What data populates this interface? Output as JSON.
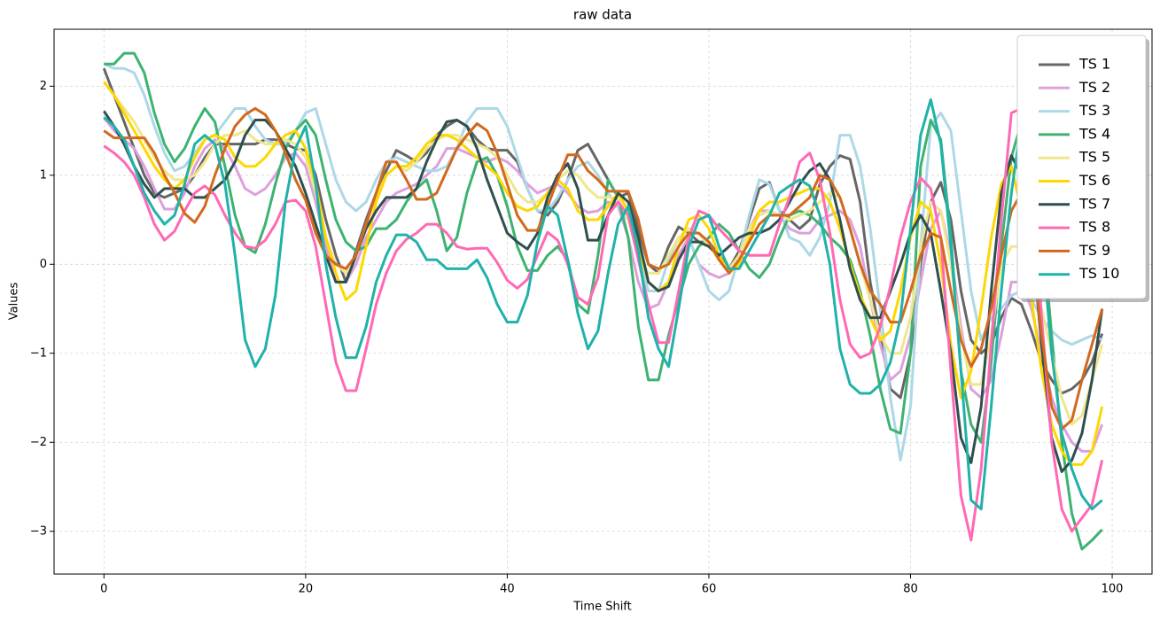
{
  "chart_data": {
    "type": "line",
    "title": "raw data",
    "xlabel": "Time Shift",
    "ylabel": "Values",
    "x": [
      0,
      1,
      2,
      3,
      4,
      5,
      6,
      7,
      8,
      9,
      10,
      11,
      12,
      13,
      14,
      15,
      16,
      17,
      18,
      19,
      20,
      21,
      22,
      23,
      24,
      25,
      26,
      27,
      28,
      29,
      30,
      31,
      32,
      33,
      34,
      35,
      36,
      37,
      38,
      39,
      40,
      41,
      42,
      43,
      44,
      45,
      46,
      47,
      48,
      49,
      50,
      51,
      52,
      53,
      54,
      55,
      56,
      57,
      58,
      59,
      60,
      61,
      62,
      63,
      64,
      65,
      66,
      67,
      68,
      69,
      70,
      71,
      72,
      73,
      74,
      75,
      76,
      77,
      78,
      79,
      80,
      81,
      82,
      83,
      84,
      85,
      86,
      87,
      88,
      89,
      90,
      91,
      92,
      93,
      94,
      95,
      96,
      97,
      98,
      99
    ],
    "series": [
      {
        "name": "TS 1",
        "color": "#666666",
        "values": [
          2.2,
          1.9,
          1.6,
          1.3,
          1.0,
          0.8,
          0.75,
          0.8,
          0.85,
          1.0,
          1.2,
          1.35,
          1.35,
          1.35,
          1.35,
          1.35,
          1.4,
          1.4,
          1.35,
          1.3,
          1.28,
          1.0,
          0.5,
          0.1,
          -0.2,
          0.15,
          0.5,
          0.8,
          1.05,
          1.28,
          1.22,
          1.15,
          1.25,
          1.45,
          1.55,
          1.62,
          1.55,
          1.4,
          1.3,
          1.28,
          1.28,
          1.15,
          0.85,
          0.6,
          0.55,
          0.7,
          0.95,
          1.28,
          1.35,
          1.15,
          0.95,
          0.75,
          0.8,
          0.4,
          0.0,
          -0.1,
          0.2,
          0.42,
          0.35,
          0.25,
          0.25,
          0.1,
          -0.05,
          0.15,
          0.5,
          0.85,
          0.92,
          0.6,
          0.5,
          0.4,
          0.5,
          0.9,
          1.1,
          1.22,
          1.18,
          0.7,
          -0.2,
          -0.8,
          -1.4,
          -1.5,
          -1.0,
          0.0,
          0.7,
          0.92,
          0.5,
          -0.3,
          -0.85,
          -1.0,
          -0.9,
          -0.6,
          -0.38,
          -0.45,
          -0.75,
          -1.1,
          -1.3,
          -1.45,
          -1.4,
          -1.3,
          -1.1,
          -0.78
        ]
      },
      {
        "name": "TS 2",
        "color": "#dda0dd",
        "values": [
          1.65,
          1.5,
          1.4,
          1.3,
          1.1,
          0.85,
          0.62,
          0.62,
          0.8,
          1.1,
          1.3,
          1.4,
          1.3,
          1.1,
          0.85,
          0.78,
          0.85,
          1.0,
          1.2,
          1.25,
          1.1,
          0.7,
          0.2,
          -0.2,
          -0.2,
          0.0,
          0.3,
          0.5,
          0.7,
          0.8,
          0.85,
          0.9,
          1.0,
          1.1,
          1.3,
          1.3,
          1.25,
          1.2,
          1.15,
          1.2,
          1.15,
          1.05,
          0.9,
          0.8,
          0.85,
          0.9,
          0.8,
          0.65,
          0.58,
          0.6,
          0.7,
          0.65,
          0.3,
          -0.2,
          -0.5,
          -0.45,
          -0.2,
          0.1,
          0.3,
          0.0,
          -0.1,
          -0.15,
          -0.1,
          0.1,
          0.4,
          0.6,
          0.6,
          0.55,
          0.4,
          0.35,
          0.35,
          0.5,
          0.55,
          0.6,
          0.5,
          0.2,
          -0.4,
          -0.9,
          -1.3,
          -1.2,
          -0.8,
          -0.2,
          0.4,
          0.6,
          0.1,
          -0.7,
          -1.4,
          -1.5,
          -1.3,
          -0.8,
          -0.2,
          -0.2,
          -0.5,
          -1.0,
          -1.5,
          -1.8,
          -2.0,
          -2.1,
          -2.1,
          -1.8
        ]
      },
      {
        "name": "TS 3",
        "color": "#add8e6",
        "values": [
          2.25,
          2.2,
          2.2,
          2.15,
          1.9,
          1.55,
          1.25,
          1.05,
          1.1,
          1.25,
          1.4,
          1.45,
          1.6,
          1.75,
          1.75,
          1.55,
          1.4,
          1.35,
          1.35,
          1.5,
          1.7,
          1.75,
          1.35,
          0.95,
          0.7,
          0.6,
          0.7,
          0.95,
          1.15,
          1.2,
          1.15,
          1.1,
          1.05,
          1.05,
          1.1,
          1.3,
          1.6,
          1.75,
          1.75,
          1.75,
          1.55,
          1.2,
          0.85,
          0.6,
          0.6,
          0.75,
          0.95,
          1.1,
          1.15,
          1.0,
          0.8,
          0.65,
          0.5,
          0.1,
          -0.3,
          -0.3,
          0.05,
          0.3,
          0.3,
          0.0,
          -0.3,
          -0.4,
          -0.3,
          0.1,
          0.55,
          0.95,
          0.9,
          0.6,
          0.3,
          0.25,
          0.1,
          0.3,
          0.7,
          1.45,
          1.45,
          1.1,
          0.4,
          -0.5,
          -1.5,
          -2.2,
          -1.6,
          0.2,
          1.55,
          1.7,
          1.5,
          0.6,
          -0.3,
          -0.85,
          -0.6,
          -0.5,
          -0.35,
          -0.3,
          -0.4,
          -0.6,
          -0.75,
          -0.85,
          -0.9,
          -0.85,
          -0.8,
          -0.85
        ]
      },
      {
        "name": "TS 4",
        "color": "#3cb371",
        "values": [
          2.25,
          2.25,
          2.37,
          2.37,
          2.15,
          1.7,
          1.35,
          1.15,
          1.3,
          1.55,
          1.75,
          1.6,
          1.1,
          0.55,
          0.2,
          0.13,
          0.45,
          0.9,
          1.3,
          1.5,
          1.62,
          1.45,
          0.95,
          0.5,
          0.25,
          0.15,
          0.2,
          0.4,
          0.4,
          0.5,
          0.7,
          0.85,
          0.95,
          0.6,
          0.15,
          0.3,
          0.8,
          1.15,
          1.2,
          1.0,
          0.65,
          0.2,
          -0.07,
          -0.07,
          0.1,
          0.2,
          0.05,
          -0.45,
          -0.55,
          0.1,
          0.95,
          0.75,
          0.3,
          -0.7,
          -1.3,
          -1.3,
          -0.8,
          -0.4,
          0.0,
          0.2,
          0.3,
          0.45,
          0.35,
          0.15,
          -0.05,
          -0.15,
          0.0,
          0.3,
          0.55,
          0.6,
          0.55,
          0.45,
          0.3,
          0.2,
          0.05,
          -0.3,
          -0.8,
          -1.4,
          -1.85,
          -1.9,
          -1.0,
          1.1,
          1.62,
          1.4,
          0.3,
          -1.2,
          -1.8,
          -2.0,
          -1.1,
          0.2,
          1.2,
          1.6,
          1.5,
          0.5,
          -0.8,
          -2.0,
          -2.8,
          -3.2,
          -3.1,
          -2.98
        ]
      },
      {
        "name": "TS 5",
        "color": "#f0e68c",
        "values": [
          2.05,
          1.9,
          1.75,
          1.6,
          1.4,
          1.2,
          1.05,
          0.95,
          0.95,
          1.0,
          1.15,
          1.35,
          1.45,
          1.45,
          1.5,
          1.4,
          1.35,
          1.35,
          1.4,
          1.35,
          1.2,
          0.8,
          0.3,
          0.0,
          -0.1,
          0.1,
          0.45,
          0.75,
          1.0,
          1.1,
          1.05,
          1.15,
          1.3,
          1.4,
          1.45,
          1.45,
          1.4,
          1.35,
          1.3,
          1.2,
          1.0,
          0.8,
          0.7,
          0.7,
          0.8,
          0.95,
          1.05,
          1.0,
          0.85,
          0.75,
          0.75,
          0.75,
          0.5,
          0.1,
          -0.1,
          -0.1,
          0.1,
          0.3,
          0.4,
          0.35,
          0.2,
          0.05,
          -0.05,
          0.1,
          0.4,
          0.55,
          0.6,
          0.55,
          0.5,
          0.55,
          0.6,
          0.7,
          0.8,
          0.75,
          0.4,
          0.0,
          -0.4,
          -0.8,
          -1.0,
          -1.0,
          -0.6,
          0.2,
          0.7,
          0.6,
          0.0,
          -0.8,
          -1.35,
          -1.35,
          -0.8,
          0.0,
          0.2,
          0.2,
          0.0,
          -0.5,
          -1.0,
          -1.5,
          -1.8,
          -1.7,
          -1.3,
          -0.9
        ]
      },
      {
        "name": "TS 6",
        "color": "#ffd700",
        "values": [
          2.05,
          1.9,
          1.7,
          1.5,
          1.3,
          1.1,
          0.95,
          0.85,
          0.95,
          1.2,
          1.4,
          1.45,
          1.4,
          1.2,
          1.1,
          1.1,
          1.2,
          1.35,
          1.45,
          1.5,
          1.3,
          0.9,
          0.3,
          -0.1,
          -0.4,
          -0.3,
          0.2,
          0.7,
          1.0,
          1.1,
          1.1,
          1.2,
          1.35,
          1.45,
          1.45,
          1.4,
          1.3,
          1.2,
          1.1,
          1.0,
          0.8,
          0.65,
          0.6,
          0.65,
          0.8,
          0.95,
          0.85,
          0.6,
          0.5,
          0.5,
          0.65,
          0.8,
          0.6,
          0.2,
          -0.2,
          -0.3,
          -0.2,
          0.2,
          0.5,
          0.55,
          0.4,
          0.1,
          -0.1,
          0.0,
          0.3,
          0.6,
          0.7,
          0.7,
          0.75,
          0.8,
          0.85,
          0.85,
          0.7,
          0.4,
          0.0,
          -0.35,
          -0.6,
          -0.85,
          -0.75,
          -0.3,
          0.3,
          0.7,
          0.6,
          0.0,
          -0.9,
          -1.5,
          -1.2,
          -0.5,
          0.3,
          0.9,
          1.1,
          0.6,
          -0.4,
          -1.2,
          -1.8,
          -2.1,
          -2.25,
          -2.25,
          -2.1,
          -1.6
        ]
      },
      {
        "name": "TS 7",
        "color": "#2f4f4f",
        "values": [
          1.72,
          1.55,
          1.35,
          1.1,
          0.9,
          0.75,
          0.85,
          0.85,
          0.85,
          0.75,
          0.75,
          0.85,
          0.95,
          1.15,
          1.45,
          1.62,
          1.62,
          1.5,
          1.3,
          1.1,
          0.8,
          0.45,
          0.1,
          -0.2,
          -0.2,
          0.1,
          0.4,
          0.6,
          0.75,
          0.75,
          0.75,
          0.85,
          1.15,
          1.4,
          1.6,
          1.62,
          1.55,
          1.3,
          0.95,
          0.65,
          0.35,
          0.25,
          0.17,
          0.35,
          0.75,
          1.0,
          1.13,
          0.85,
          0.27,
          0.27,
          0.55,
          0.8,
          0.7,
          0.3,
          -0.2,
          -0.3,
          -0.25,
          0.05,
          0.25,
          0.25,
          0.2,
          0.1,
          0.2,
          0.3,
          0.35,
          0.35,
          0.4,
          0.5,
          0.7,
          0.9,
          1.05,
          1.13,
          0.95,
          0.5,
          -0.05,
          -0.4,
          -0.6,
          -0.6,
          -0.3,
          0.0,
          0.35,
          0.55,
          0.35,
          -0.3,
          -1.0,
          -1.95,
          -2.23,
          -1.6,
          -0.3,
          0.8,
          1.22,
          1.0,
          0.3,
          -0.9,
          -1.95,
          -2.33,
          -2.2,
          -1.9,
          -1.3,
          -0.5
        ]
      },
      {
        "name": "TS 8",
        "color": "#ff69b4",
        "values": [
          1.33,
          1.25,
          1.15,
          1.0,
          0.75,
          0.45,
          0.27,
          0.37,
          0.6,
          0.8,
          0.88,
          0.78,
          0.55,
          0.35,
          0.2,
          0.18,
          0.27,
          0.45,
          0.7,
          0.72,
          0.6,
          0.2,
          -0.45,
          -1.1,
          -1.42,
          -1.42,
          -0.95,
          -0.45,
          -0.1,
          0.15,
          0.28,
          0.35,
          0.45,
          0.45,
          0.35,
          0.2,
          0.17,
          0.18,
          0.18,
          0.02,
          -0.18,
          -0.27,
          -0.17,
          0.1,
          0.36,
          0.27,
          0.0,
          -0.37,
          -0.45,
          -0.15,
          0.55,
          0.7,
          0.55,
          0.05,
          -0.45,
          -0.88,
          -0.88,
          -0.3,
          0.3,
          0.6,
          0.55,
          0.4,
          0.28,
          0.15,
          0.1,
          0.1,
          0.1,
          0.45,
          0.75,
          1.15,
          1.25,
          0.95,
          0.35,
          -0.4,
          -0.9,
          -1.05,
          -1.0,
          -0.7,
          -0.25,
          0.3,
          0.7,
          0.97,
          0.85,
          0.3,
          -1.2,
          -2.6,
          -3.1,
          -2.3,
          -0.9,
          0.5,
          1.7,
          1.75,
          1.0,
          -0.6,
          -2.0,
          -2.75,
          -3.0,
          -2.85,
          -2.7,
          -2.2
        ]
      },
      {
        "name": "TS 9",
        "color": "#d2691e",
        "values": [
          1.5,
          1.42,
          1.42,
          1.42,
          1.42,
          1.25,
          1.0,
          0.8,
          0.57,
          0.47,
          0.65,
          1.0,
          1.3,
          1.55,
          1.68,
          1.75,
          1.68,
          1.5,
          1.25,
          0.95,
          0.72,
          0.35,
          0.1,
          0.0,
          -0.05,
          0.1,
          0.45,
          0.8,
          1.15,
          1.15,
          0.95,
          0.73,
          0.73,
          0.8,
          1.05,
          1.3,
          1.45,
          1.58,
          1.5,
          1.25,
          0.9,
          0.55,
          0.38,
          0.38,
          0.65,
          0.95,
          1.23,
          1.23,
          1.05,
          0.95,
          0.82,
          0.82,
          0.82,
          0.5,
          0.0,
          -0.05,
          0.0,
          0.2,
          0.35,
          0.35,
          0.25,
          0.05,
          -0.1,
          0.05,
          0.25,
          0.45,
          0.55,
          0.55,
          0.55,
          0.65,
          0.75,
          1.0,
          0.95,
          0.75,
          0.4,
          0.0,
          -0.3,
          -0.45,
          -0.65,
          -0.65,
          -0.3,
          0.1,
          0.35,
          0.3,
          -0.3,
          -0.85,
          -1.15,
          -0.95,
          -0.5,
          0.1,
          0.6,
          0.8,
          0.2,
          -0.8,
          -1.6,
          -1.85,
          -1.75,
          -1.3,
          -0.9,
          -0.5
        ]
      },
      {
        "name": "TS 10",
        "color": "#20b2aa",
        "values": [
          1.65,
          1.55,
          1.4,
          1.1,
          0.8,
          0.6,
          0.45,
          0.55,
          0.9,
          1.35,
          1.45,
          1.35,
          0.9,
          0.1,
          -0.85,
          -1.15,
          -0.95,
          -0.35,
          0.7,
          1.3,
          1.55,
          0.9,
          0.0,
          -0.6,
          -1.05,
          -1.05,
          -0.7,
          -0.2,
          0.1,
          0.33,
          0.33,
          0.25,
          0.05,
          0.05,
          -0.05,
          -0.05,
          -0.05,
          0.05,
          -0.15,
          -0.45,
          -0.65,
          -0.65,
          -0.35,
          0.25,
          0.65,
          0.55,
          0.05,
          -0.55,
          -0.95,
          -0.75,
          -0.1,
          0.45,
          0.65,
          0.15,
          -0.6,
          -0.95,
          -1.15,
          -0.5,
          0.2,
          0.5,
          0.55,
          0.2,
          -0.05,
          -0.05,
          0.15,
          0.35,
          0.55,
          0.8,
          0.88,
          0.95,
          0.88,
          0.55,
          0.0,
          -0.95,
          -1.35,
          -1.45,
          -1.45,
          -1.35,
          -1.1,
          -0.6,
          0.4,
          1.45,
          1.85,
          1.35,
          0.2,
          -1.2,
          -2.65,
          -2.75,
          -1.6,
          -0.3,
          0.8,
          1.6,
          1.4,
          0.3,
          -1.0,
          -1.9,
          -2.3,
          -2.6,
          -2.75,
          -2.65
        ]
      }
    ],
    "xlim": [
      -4.95,
      103.95
    ],
    "ylim": [
      -3.48,
      2.64
    ],
    "xticks": [
      0,
      20,
      40,
      60,
      80,
      100
    ],
    "yticks": [
      {
        "value": -3,
        "label": "−3"
      },
      {
        "value": -2,
        "label": "−2"
      },
      {
        "value": -1,
        "label": "−1"
      },
      0,
      1,
      2
    ],
    "grid": true,
    "legend": "upper right"
  }
}
